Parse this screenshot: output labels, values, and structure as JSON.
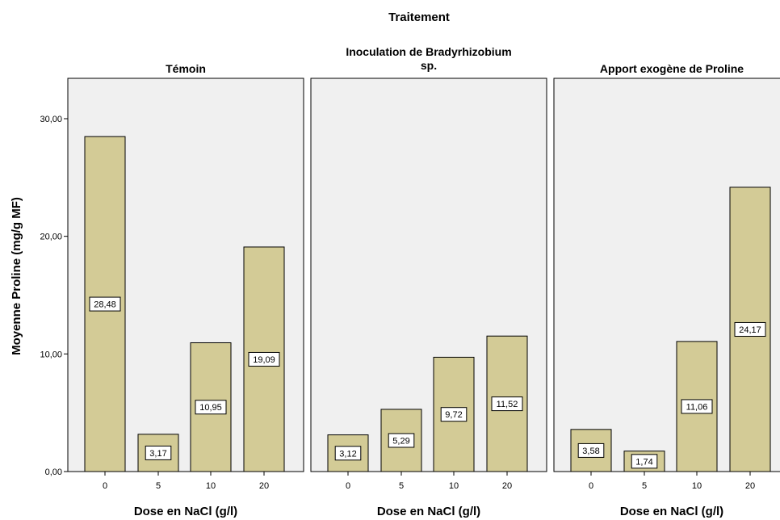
{
  "chart_data": {
    "type": "bar",
    "title": "Traitement",
    "ylabel": "Moyenne Proline (mg/g MF)",
    "ylim": [
      0,
      30
    ],
    "yticks": [
      "0,00",
      "10,00",
      "20,00",
      "30,00"
    ],
    "grid": false,
    "bar_color": "#d3cb96",
    "panel_background": "#f0f0f0",
    "panels": [
      {
        "title": "Témoin",
        "xlabel": "Dose en NaCl (g/l)",
        "categories": [
          "0",
          "5",
          "10",
          "20"
        ],
        "values": [
          28.48,
          3.17,
          10.95,
          19.09
        ],
        "labels": [
          "28,48",
          "3,17",
          "10,95",
          "19,09"
        ]
      },
      {
        "title": "Inoculation de Bradyrhizobium sp.",
        "title_lines": [
          "Inoculation de Bradyrhizobium",
          "sp."
        ],
        "xlabel": "Dose en NaCl (g/l)",
        "categories": [
          "0",
          "5",
          "10",
          "20"
        ],
        "values": [
          3.12,
          5.29,
          9.72,
          11.52
        ],
        "labels": [
          "3,12",
          "5,29",
          "9,72",
          "11,52"
        ]
      },
      {
        "title": "Apport exogène de Proline",
        "xlabel": "Dose en NaCl (g/l)",
        "categories": [
          "0",
          "5",
          "10",
          "20"
        ],
        "values": [
          3.58,
          1.74,
          11.06,
          24.17
        ],
        "labels": [
          "3,58",
          "1,74",
          "11,06",
          "24,17"
        ]
      }
    ]
  }
}
